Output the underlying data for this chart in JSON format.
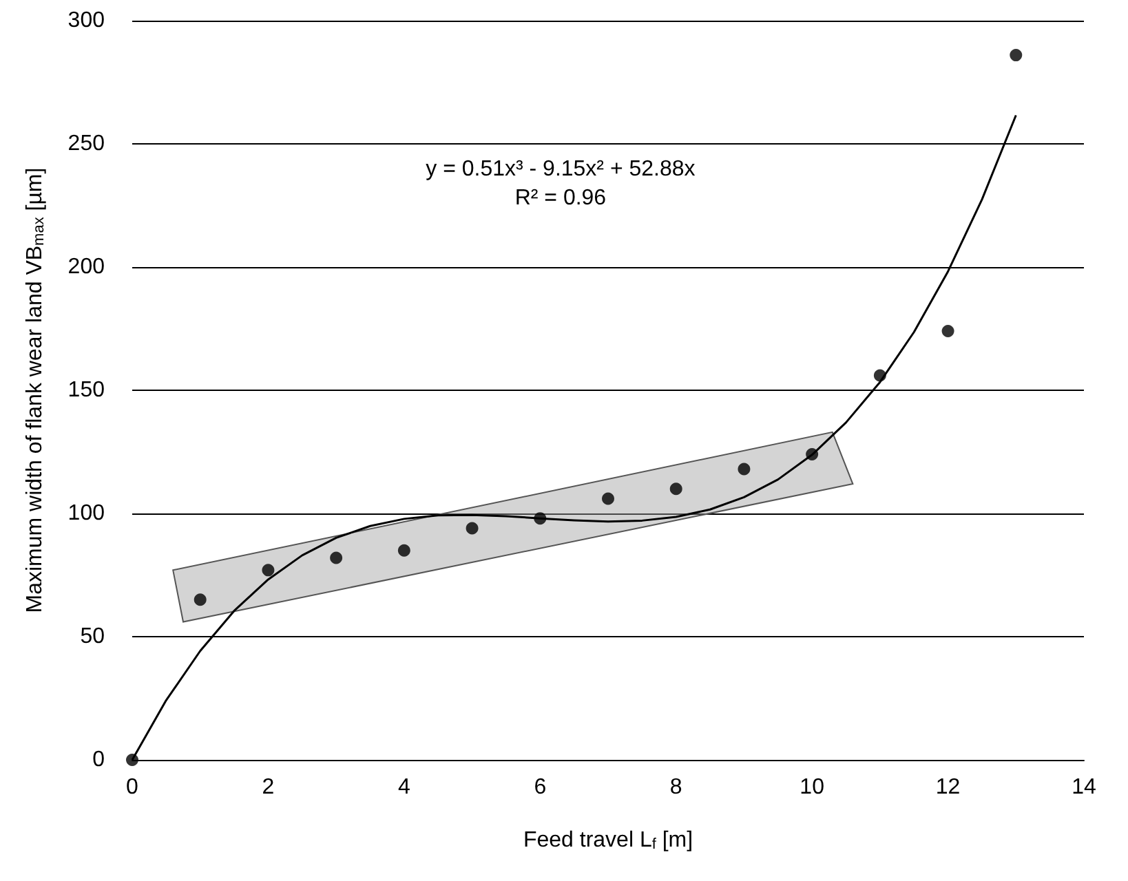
{
  "chart_data": {
    "type": "scatter",
    "xlabel": "Feed travel L$_{f}$ [m]",
    "ylabel": "Maximum width of flank wear land VB$_{max}$ [µm]",
    "xlim": [
      0,
      14
    ],
    "xticks": [
      0,
      2,
      4,
      6,
      8,
      10,
      12,
      14
    ],
    "ylim": [
      0,
      300
    ],
    "yticks": [
      0,
      50,
      100,
      150,
      200,
      250,
      300
    ],
    "grid": "y",
    "annotations": [
      "y = 0.51x³ - 9.15x² + 52.88x",
      "R² = 0.96"
    ],
    "series": [
      {
        "color": "#000000",
        "marker": "circle",
        "x": [
          0,
          1,
          2,
          3,
          4,
          5,
          6,
          7,
          8,
          9,
          10,
          11,
          12,
          13
        ],
        "values": [
          0,
          65,
          77,
          82,
          85,
          94,
          98,
          106,
          110,
          118,
          124,
          156,
          174,
          286
        ]
      },
      {
        "type": "line",
        "color": "#000000",
        "marker": "none",
        "x": [
          0,
          0.5,
          1,
          1.5,
          2,
          2.5,
          3,
          3.5,
          4,
          4.5,
          5,
          5.5,
          6,
          6.5,
          7,
          7.5,
          8,
          8.5,
          9,
          9.5,
          10,
          10.5,
          11,
          11.5,
          12,
          12.5,
          13
        ],
        "values": [
          0,
          24.2,
          44.2,
          60.5,
          73.2,
          83,
          90.1,
          94.9,
          97.8,
          99.2,
          99.4,
          98.9,
          98,
          97.2,
          96.7,
          97.1,
          98.6,
          101.6,
          106.6,
          113.8,
          123.8,
          136.9,
          153.3,
          173.6,
          198.2,
          227.4,
          261.6
        ]
      }
    ]
  }
}
